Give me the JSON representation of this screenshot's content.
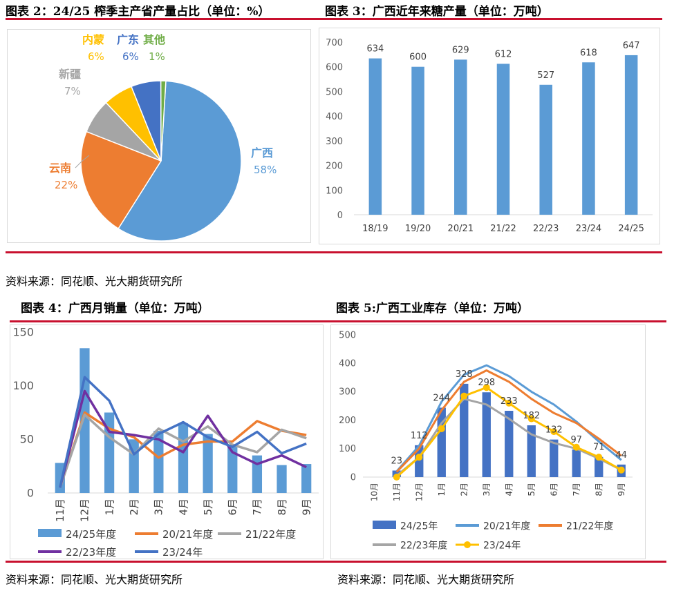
{
  "titles": {
    "fig2": "图表 2：24/25 榨季主产省产量占比（单位：%）",
    "fig3": "图表 3：广西近年来糖产量（单位：万吨）",
    "fig4": "图表 4：广西月销量（单位：万吨）",
    "fig5": "图表 5:广西工业库存（单位：万吨）"
  },
  "sources": {
    "s1": "资料来源：同花顺、光大期货研究所",
    "s2": "资料来源：同花顺、光大期货研究所",
    "s3": "资料来源：同花顺、光大期货研究所"
  },
  "chart_data": [
    {
      "id": "pie",
      "type": "pie",
      "title": "",
      "slices": [
        {
          "label": "广西",
          "pct_label": "58%",
          "value": 58,
          "color": "#5b9bd5"
        },
        {
          "label": "云南",
          "pct_label": "22%",
          "value": 22,
          "color": "#ed7d31"
        },
        {
          "label": "新疆",
          "pct_label": "7%",
          "value": 7,
          "color": "#a5a5a5"
        },
        {
          "label": "内蒙",
          "pct_label": "6%",
          "value": 6,
          "color": "#ffc000"
        },
        {
          "label": "广东",
          "pct_label": "6%",
          "value": 6,
          "color": "#4472c4"
        },
        {
          "label": "其他",
          "pct_label": "1%",
          "value": 1,
          "color": "#70ad47"
        }
      ]
    },
    {
      "id": "bar",
      "type": "bar",
      "categories": [
        "18/19",
        "19/20",
        "20/21",
        "21/22",
        "22/23",
        "23/24",
        "24/25"
      ],
      "values": [
        634,
        600,
        629,
        612,
        527,
        618,
        647
      ],
      "ylim": [
        0,
        700
      ],
      "yticks": [
        0,
        100,
        200,
        300,
        400,
        500,
        600,
        700
      ],
      "color": "#5b9bd5"
    },
    {
      "id": "sales",
      "type": "bar+line",
      "categories": [
        "11月",
        "12月",
        "1月",
        "2月",
        "3月",
        "4月",
        "5月",
        "6月",
        "7月",
        "8月",
        "9月"
      ],
      "ylim": [
        0,
        150
      ],
      "yticks": [
        0,
        50,
        100,
        150
      ],
      "bars": {
        "name": "24/25年度",
        "color": "#5b9bd5",
        "values": [
          28,
          135,
          75,
          50,
          58,
          65,
          55,
          45,
          35,
          26,
          27
        ]
      },
      "lines": [
        {
          "name": "20/21年度",
          "color": "#ed7d31",
          "values": [
            5,
            75,
            60,
            52,
            33,
            45,
            48,
            48,
            67,
            58,
            54
          ]
        },
        {
          "name": "21/22年度",
          "color": "#a5a5a5",
          "values": [
            5,
            73,
            52,
            36,
            60,
            48,
            62,
            45,
            38,
            59,
            51
          ]
        },
        {
          "name": "22/23年度",
          "color": "#7030a0",
          "values": [
            5,
            95,
            57,
            54,
            50,
            38,
            72,
            38,
            27,
            35,
            24
          ]
        },
        {
          "name": "23/24年",
          "color": "#4472c4",
          "values": [
            5,
            108,
            86,
            36,
            55,
            66,
            52,
            43,
            57,
            37,
            46
          ]
        }
      ]
    },
    {
      "id": "stock",
      "type": "bar+line",
      "categories": [
        "10月",
        "11月",
        "12月",
        "1月",
        "2月",
        "3月",
        "4月",
        "5月",
        "6月",
        "7月",
        "8月",
        "9月"
      ],
      "ylim": [
        0,
        500
      ],
      "yticks": [
        0,
        100,
        200,
        300,
        400,
        500
      ],
      "bars": {
        "name": "24/25年",
        "color": "#4472c4",
        "values": [
          null,
          23,
          112,
          244,
          328,
          298,
          233,
          182,
          132,
          97,
          71,
          44
        ],
        "labels": [
          "",
          "23",
          "112",
          "244",
          "328",
          "298",
          "233",
          "182",
          "132",
          "97",
          "71",
          "44"
        ]
      },
      "lines": [
        {
          "name": "20/21年度",
          "color": "#5b9bd5",
          "values": [
            null,
            20,
            110,
            265,
            360,
            393,
            355,
            300,
            255,
            195,
            125,
            60
          ]
        },
        {
          "name": "21/22年度",
          "color": "#ed7d31",
          "values": [
            null,
            18,
            100,
            235,
            335,
            375,
            335,
            275,
            225,
            190,
            135,
            75
          ]
        },
        {
          "name": "22/23年度",
          "color": "#a5a5a5",
          "values": [
            null,
            5,
            70,
            190,
            275,
            255,
            205,
            150,
            120,
            100,
            65,
            25
          ]
        },
        {
          "name": "23/24年",
          "color": "#ffc000",
          "values": [
            null,
            0,
            70,
            170,
            285,
            315,
            260,
            205,
            160,
            105,
            70,
            25
          ],
          "markers": true
        }
      ]
    }
  ]
}
